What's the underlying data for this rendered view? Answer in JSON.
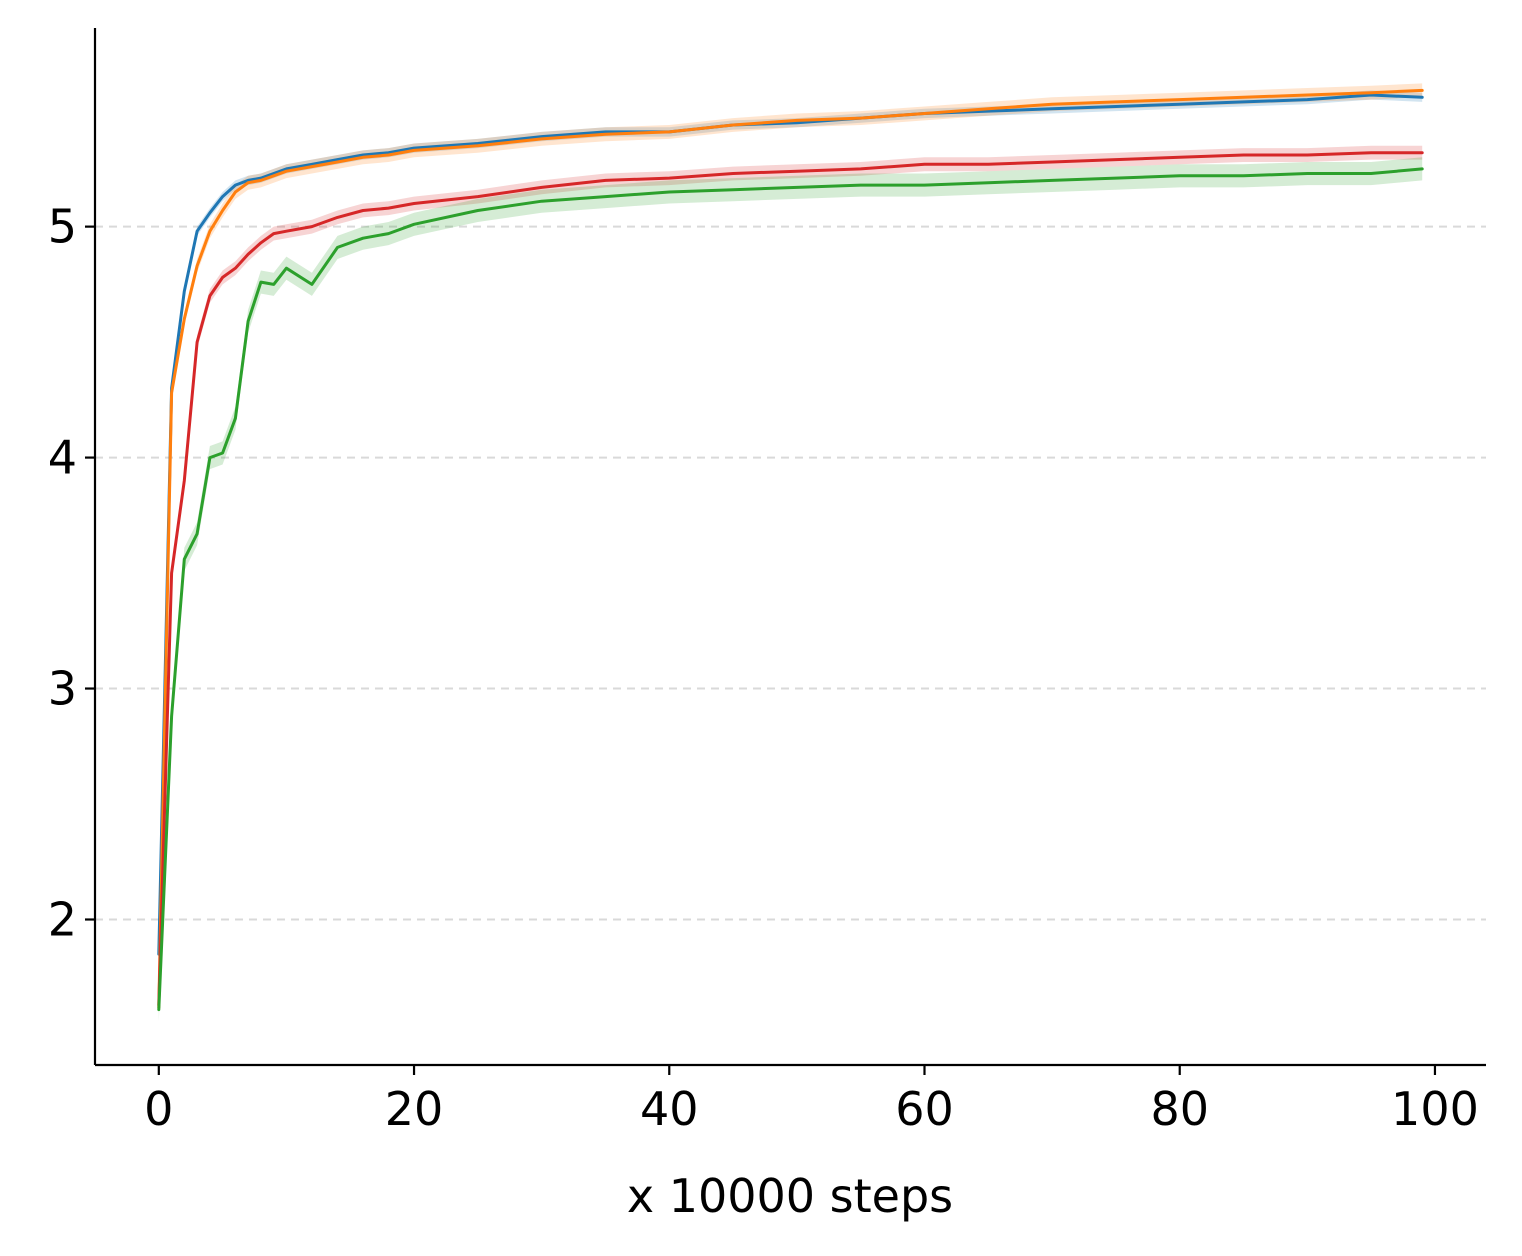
{
  "chart_data": {
    "type": "line",
    "title": "",
    "xlabel": "x 10000 steps",
    "ylabel": "",
    "xlim": [
      -5,
      104
    ],
    "ylim": [
      1.37,
      5.86
    ],
    "xticks": [
      0,
      20,
      40,
      60,
      80,
      100
    ],
    "yticks": [
      2,
      3,
      4,
      5
    ],
    "grid": "horizontal dashed",
    "legend": "none",
    "x": [
      0,
      1,
      2,
      3,
      4,
      5,
      6,
      7,
      8,
      9,
      10,
      12,
      14,
      16,
      18,
      20,
      25,
      30,
      35,
      40,
      45,
      50,
      55,
      60,
      65,
      70,
      75,
      80,
      85,
      90,
      95,
      99
    ],
    "series": [
      {
        "color": "#1f77b4",
        "band": 0.02,
        "values": [
          1.85,
          4.3,
          4.72,
          4.98,
          5.06,
          5.13,
          5.18,
          5.2,
          5.21,
          5.23,
          5.25,
          5.27,
          5.29,
          5.31,
          5.32,
          5.34,
          5.36,
          5.39,
          5.41,
          5.41,
          5.44,
          5.45,
          5.47,
          5.49,
          5.5,
          5.51,
          5.52,
          5.53,
          5.54,
          5.55,
          5.57,
          5.56
        ]
      },
      {
        "color": "#ff7f0e",
        "band": 0.03,
        "values": [
          1.62,
          4.28,
          4.6,
          4.83,
          4.98,
          5.07,
          5.15,
          5.19,
          5.2,
          5.22,
          5.24,
          5.26,
          5.28,
          5.3,
          5.31,
          5.33,
          5.35,
          5.38,
          5.4,
          5.41,
          5.44,
          5.46,
          5.47,
          5.49,
          5.51,
          5.53,
          5.54,
          5.55,
          5.56,
          5.57,
          5.58,
          5.59
        ]
      },
      {
        "color": "#d62728",
        "band": 0.03,
        "values": [
          1.63,
          3.5,
          3.9,
          4.5,
          4.7,
          4.78,
          4.82,
          4.88,
          4.93,
          4.97,
          4.98,
          5.0,
          5.04,
          5.07,
          5.08,
          5.1,
          5.13,
          5.17,
          5.2,
          5.21,
          5.23,
          5.24,
          5.25,
          5.27,
          5.27,
          5.28,
          5.29,
          5.3,
          5.31,
          5.31,
          5.32,
          5.32
        ]
      },
      {
        "color": "#2ca02c",
        "band": 0.05,
        "values": [
          1.61,
          2.88,
          3.56,
          3.67,
          4.0,
          4.02,
          4.17,
          4.59,
          4.76,
          4.75,
          4.82,
          4.75,
          4.91,
          4.95,
          4.97,
          5.01,
          5.07,
          5.11,
          5.13,
          5.15,
          5.16,
          5.17,
          5.18,
          5.18,
          5.19,
          5.2,
          5.21,
          5.22,
          5.22,
          5.23,
          5.23,
          5.25
        ]
      }
    ]
  }
}
